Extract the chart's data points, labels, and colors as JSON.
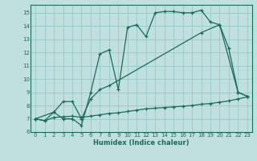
{
  "xlabel": "Humidex (Indice chaleur)",
  "bg_color": "#c0e0e0",
  "grid_color": "#98c8c8",
  "line_color": "#1a6b5a",
  "xlim": [
    -0.5,
    23.5
  ],
  "ylim": [
    6,
    15.6
  ],
  "xticks": [
    0,
    1,
    2,
    3,
    4,
    5,
    6,
    7,
    8,
    9,
    10,
    11,
    12,
    13,
    14,
    15,
    16,
    17,
    18,
    19,
    20,
    21,
    22,
    23
  ],
  "yticks": [
    6,
    7,
    8,
    9,
    10,
    11,
    12,
    13,
    14,
    15
  ],
  "line1_x": [
    0,
    1,
    2,
    3,
    4,
    5,
    6,
    7,
    8,
    9,
    10,
    11,
    12,
    13,
    14,
    15,
    16,
    17,
    18,
    19,
    20,
    21,
    22,
    23
  ],
  "line1_y": [
    7.0,
    6.85,
    7.5,
    7.0,
    7.0,
    6.5,
    9.0,
    11.9,
    12.2,
    9.2,
    13.9,
    14.1,
    13.2,
    15.0,
    15.1,
    15.1,
    15.0,
    15.0,
    15.2,
    14.3,
    14.1,
    12.3,
    9.0,
    8.7
  ],
  "line2_x": [
    0,
    2,
    3,
    4,
    5,
    6,
    7,
    8,
    18,
    20,
    22,
    23
  ],
  "line2_y": [
    7.0,
    7.5,
    8.3,
    8.3,
    7.0,
    8.5,
    9.2,
    9.5,
    13.5,
    14.1,
    9.0,
    8.7
  ],
  "line3_x": [
    0,
    1,
    2,
    3,
    4,
    5,
    6,
    7,
    8,
    9,
    10,
    11,
    12,
    13,
    14,
    15,
    16,
    17,
    18,
    19,
    20,
    21,
    22,
    23
  ],
  "line3_y": [
    7.0,
    6.85,
    7.1,
    7.15,
    7.2,
    7.1,
    7.2,
    7.3,
    7.4,
    7.45,
    7.55,
    7.65,
    7.75,
    7.8,
    7.85,
    7.9,
    7.95,
    8.0,
    8.1,
    8.15,
    8.25,
    8.35,
    8.5,
    8.65
  ]
}
